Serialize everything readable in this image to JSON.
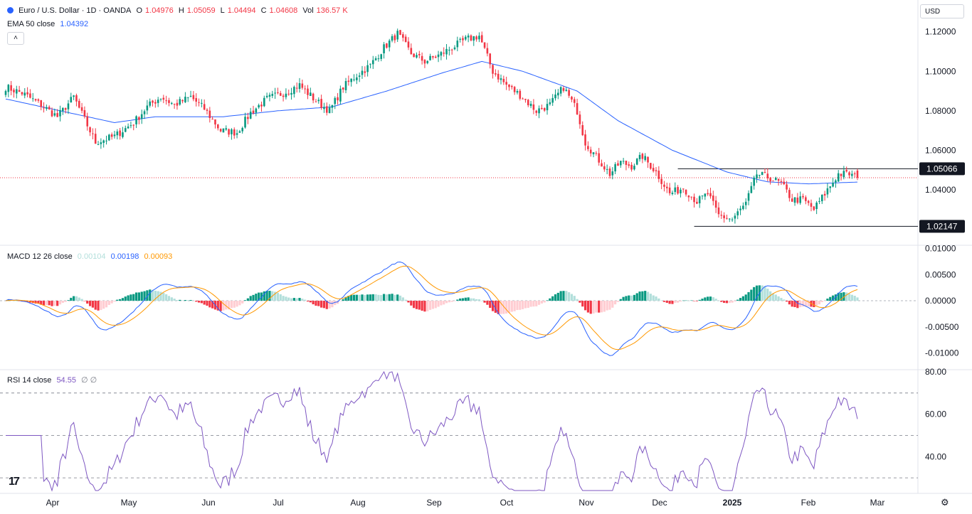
{
  "header": {
    "symbol": "Euro / U.S. Dollar · 1D · OANDA",
    "o_label": "O",
    "o_value": "1.04976",
    "h_label": "H",
    "h_value": "1.05059",
    "l_label": "L",
    "l_value": "1.04494",
    "c_label": "C",
    "c_value": "1.04608",
    "vol_label": "Vol",
    "vol_value": "136.57 K",
    "currency": "USD",
    "collapse_glyph": "˄"
  },
  "indicators": {
    "ema": {
      "label": "EMA 50 close",
      "value": "1.04392",
      "color": "#2962ff"
    },
    "macd": {
      "label": "MACD 12 26 close",
      "hist_value": "0.00104",
      "macd_value": "0.00198",
      "signal_value": "0.00093",
      "hist_color": "#b2dfdb",
      "macd_color": "#2962ff",
      "signal_color": "#ff9800"
    },
    "rsi": {
      "label": "RSI 14 close",
      "value": "54.55",
      "icons": "∅ ∅",
      "color": "#7e57c2"
    }
  },
  "colors": {
    "up": "#089981",
    "down": "#f23645",
    "up_light": "#b2dfdb",
    "down_light": "#ffcdd2"
  },
  "chart_data": [
    {
      "type": "candlestick",
      "name": "Euro / U.S. Dollar · 1D · OANDA",
      "y_ticks": [
        "1.12000",
        "1.10000",
        "1.08000",
        "1.06000",
        "1.04000"
      ],
      "ylim": [
        1.0155,
        1.1235
      ],
      "x_ticks": [
        "Apr",
        "May",
        "Jun",
        "Jul",
        "Aug",
        "Sep",
        "Oct",
        "Nov",
        "Dec",
        "2025",
        "Feb",
        "Mar"
      ],
      "price_labels": [
        "1.05066",
        "1.02147"
      ],
      "levels": [
        1.05066,
        1.02147
      ],
      "last_close": 1.04608,
      "anchors": [
        [
          0,
          1.092
        ],
        [
          6,
          1.089
        ],
        [
          13,
          1.083
        ],
        [
          19,
          1.077
        ],
        [
          25,
          1.087
        ],
        [
          33,
          1.064
        ],
        [
          40,
          1.067
        ],
        [
          47,
          1.074
        ],
        [
          52,
          1.082
        ],
        [
          57,
          1.087
        ],
        [
          62,
          1.083
        ],
        [
          68,
          1.087
        ],
        [
          73,
          1.081
        ],
        [
          79,
          1.07
        ],
        [
          85,
          1.069
        ],
        [
          90,
          1.079
        ],
        [
          96,
          1.086
        ],
        [
          102,
          1.089
        ],
        [
          108,
          1.093
        ],
        [
          114,
          1.085
        ],
        [
          119,
          1.08
        ],
        [
          124,
          1.092
        ],
        [
          129,
          1.098
        ],
        [
          134,
          1.103
        ],
        [
          139,
          1.112
        ],
        [
          144,
          1.119
        ],
        [
          149,
          1.109
        ],
        [
          154,
          1.105
        ],
        [
          159,
          1.108
        ],
        [
          164,
          1.112
        ],
        [
          169,
          1.116
        ],
        [
          174,
          1.118
        ],
        [
          179,
          1.1
        ],
        [
          184,
          1.093
        ],
        [
          189,
          1.088
        ],
        [
          195,
          1.08
        ],
        [
          200,
          1.083
        ],
        [
          205,
          1.092
        ],
        [
          210,
          1.08
        ],
        [
          213,
          1.064
        ],
        [
          218,
          1.055
        ],
        [
          222,
          1.048
        ],
        [
          226,
          1.054
        ],
        [
          230,
          1.052
        ],
        [
          234,
          1.057
        ],
        [
          239,
          1.049
        ],
        [
          244,
          1.038
        ],
        [
          249,
          1.041
        ],
        [
          254,
          1.034
        ],
        [
          258,
          1.038
        ],
        [
          262,
          1.027
        ],
        [
          267,
          1.025
        ],
        [
          272,
          1.033
        ],
        [
          276,
          1.048
        ],
        [
          281,
          1.046
        ],
        [
          285,
          1.043
        ],
        [
          289,
          1.035
        ],
        [
          293,
          1.035
        ],
        [
          297,
          1.03
        ],
        [
          302,
          1.04
        ],
        [
          306,
          1.048
        ],
        [
          310,
          1.048
        ],
        [
          313,
          1.046
        ]
      ],
      "ema_anchors": [
        [
          0,
          1.086
        ],
        [
          20,
          1.08
        ],
        [
          40,
          1.074
        ],
        [
          55,
          1.077
        ],
        [
          80,
          1.077
        ],
        [
          100,
          1.08
        ],
        [
          120,
          1.082
        ],
        [
          140,
          1.09
        ],
        [
          160,
          1.099
        ],
        [
          175,
          1.105
        ],
        [
          190,
          1.1
        ],
        [
          210,
          1.09
        ],
        [
          225,
          1.075
        ],
        [
          245,
          1.06
        ],
        [
          265,
          1.049
        ],
        [
          280,
          1.044
        ],
        [
          295,
          1.043
        ],
        [
          313,
          1.0439
        ]
      ]
    },
    {
      "type": "line",
      "name": "MACD 12 26 close",
      "y_ticks": [
        "0.01000",
        "0.00500",
        "0.00000",
        "-0.00500",
        "-0.01000"
      ],
      "ylim": [
        -0.0125,
        0.0102
      ]
    },
    {
      "type": "line",
      "name": "RSI 14 close",
      "y_ticks": [
        "80.00",
        "60.00",
        "40.00"
      ],
      "ylim": [
        24,
        80
      ],
      "bands": [
        70,
        50,
        30
      ]
    }
  ]
}
